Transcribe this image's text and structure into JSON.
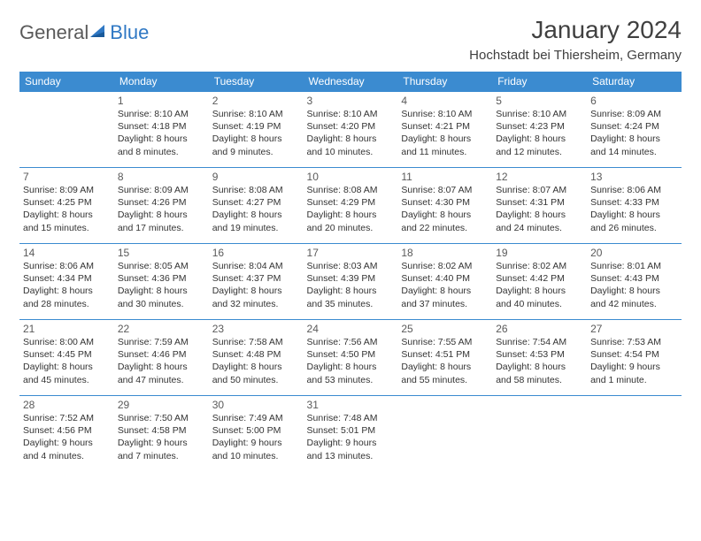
{
  "brand": {
    "part1": "General",
    "part2": "Blue"
  },
  "title": "January 2024",
  "location": "Hochstadt bei Thiersheim, Germany",
  "colors": {
    "header_bg": "#3b8bd0",
    "header_text": "#ffffff",
    "border": "#3b8bd0",
    "text": "#333333",
    "daynum": "#5a5a5a",
    "brand_gray": "#5a5a5a",
    "brand_blue": "#2f78c4",
    "background": "#ffffff"
  },
  "typography": {
    "title_fontsize": 28,
    "location_fontsize": 15,
    "header_fontsize": 12,
    "daynum_fontsize": 12,
    "info_fontsize": 10.5,
    "font_family": "Arial"
  },
  "weekdays": [
    "Sunday",
    "Monday",
    "Tuesday",
    "Wednesday",
    "Thursday",
    "Friday",
    "Saturday"
  ],
  "weeks": [
    [
      null,
      {
        "day": "1",
        "sunrise": "8:10 AM",
        "sunset": "4:18 PM",
        "daylight": "8 hours and 8 minutes."
      },
      {
        "day": "2",
        "sunrise": "8:10 AM",
        "sunset": "4:19 PM",
        "daylight": "8 hours and 9 minutes."
      },
      {
        "day": "3",
        "sunrise": "8:10 AM",
        "sunset": "4:20 PM",
        "daylight": "8 hours and 10 minutes."
      },
      {
        "day": "4",
        "sunrise": "8:10 AM",
        "sunset": "4:21 PM",
        "daylight": "8 hours and 11 minutes."
      },
      {
        "day": "5",
        "sunrise": "8:10 AM",
        "sunset": "4:23 PM",
        "daylight": "8 hours and 12 minutes."
      },
      {
        "day": "6",
        "sunrise": "8:09 AM",
        "sunset": "4:24 PM",
        "daylight": "8 hours and 14 minutes."
      }
    ],
    [
      {
        "day": "7",
        "sunrise": "8:09 AM",
        "sunset": "4:25 PM",
        "daylight": "8 hours and 15 minutes."
      },
      {
        "day": "8",
        "sunrise": "8:09 AM",
        "sunset": "4:26 PM",
        "daylight": "8 hours and 17 minutes."
      },
      {
        "day": "9",
        "sunrise": "8:08 AM",
        "sunset": "4:27 PM",
        "daylight": "8 hours and 19 minutes."
      },
      {
        "day": "10",
        "sunrise": "8:08 AM",
        "sunset": "4:29 PM",
        "daylight": "8 hours and 20 minutes."
      },
      {
        "day": "11",
        "sunrise": "8:07 AM",
        "sunset": "4:30 PM",
        "daylight": "8 hours and 22 minutes."
      },
      {
        "day": "12",
        "sunrise": "8:07 AM",
        "sunset": "4:31 PM",
        "daylight": "8 hours and 24 minutes."
      },
      {
        "day": "13",
        "sunrise": "8:06 AM",
        "sunset": "4:33 PM",
        "daylight": "8 hours and 26 minutes."
      }
    ],
    [
      {
        "day": "14",
        "sunrise": "8:06 AM",
        "sunset": "4:34 PM",
        "daylight": "8 hours and 28 minutes."
      },
      {
        "day": "15",
        "sunrise": "8:05 AM",
        "sunset": "4:36 PM",
        "daylight": "8 hours and 30 minutes."
      },
      {
        "day": "16",
        "sunrise": "8:04 AM",
        "sunset": "4:37 PM",
        "daylight": "8 hours and 32 minutes."
      },
      {
        "day": "17",
        "sunrise": "8:03 AM",
        "sunset": "4:39 PM",
        "daylight": "8 hours and 35 minutes."
      },
      {
        "day": "18",
        "sunrise": "8:02 AM",
        "sunset": "4:40 PM",
        "daylight": "8 hours and 37 minutes."
      },
      {
        "day": "19",
        "sunrise": "8:02 AM",
        "sunset": "4:42 PM",
        "daylight": "8 hours and 40 minutes."
      },
      {
        "day": "20",
        "sunrise": "8:01 AM",
        "sunset": "4:43 PM",
        "daylight": "8 hours and 42 minutes."
      }
    ],
    [
      {
        "day": "21",
        "sunrise": "8:00 AM",
        "sunset": "4:45 PM",
        "daylight": "8 hours and 45 minutes."
      },
      {
        "day": "22",
        "sunrise": "7:59 AM",
        "sunset": "4:46 PM",
        "daylight": "8 hours and 47 minutes."
      },
      {
        "day": "23",
        "sunrise": "7:58 AM",
        "sunset": "4:48 PM",
        "daylight": "8 hours and 50 minutes."
      },
      {
        "day": "24",
        "sunrise": "7:56 AM",
        "sunset": "4:50 PM",
        "daylight": "8 hours and 53 minutes."
      },
      {
        "day": "25",
        "sunrise": "7:55 AM",
        "sunset": "4:51 PM",
        "daylight": "8 hours and 55 minutes."
      },
      {
        "day": "26",
        "sunrise": "7:54 AM",
        "sunset": "4:53 PM",
        "daylight": "8 hours and 58 minutes."
      },
      {
        "day": "27",
        "sunrise": "7:53 AM",
        "sunset": "4:54 PM",
        "daylight": "9 hours and 1 minute."
      }
    ],
    [
      {
        "day": "28",
        "sunrise": "7:52 AM",
        "sunset": "4:56 PM",
        "daylight": "9 hours and 4 minutes."
      },
      {
        "day": "29",
        "sunrise": "7:50 AM",
        "sunset": "4:58 PM",
        "daylight": "9 hours and 7 minutes."
      },
      {
        "day": "30",
        "sunrise": "7:49 AM",
        "sunset": "5:00 PM",
        "daylight": "9 hours and 10 minutes."
      },
      {
        "day": "31",
        "sunrise": "7:48 AM",
        "sunset": "5:01 PM",
        "daylight": "9 hours and 13 minutes."
      },
      null,
      null,
      null
    ]
  ],
  "labels": {
    "sunrise_prefix": "Sunrise: ",
    "sunset_prefix": "Sunset: ",
    "daylight_prefix": "Daylight: "
  }
}
